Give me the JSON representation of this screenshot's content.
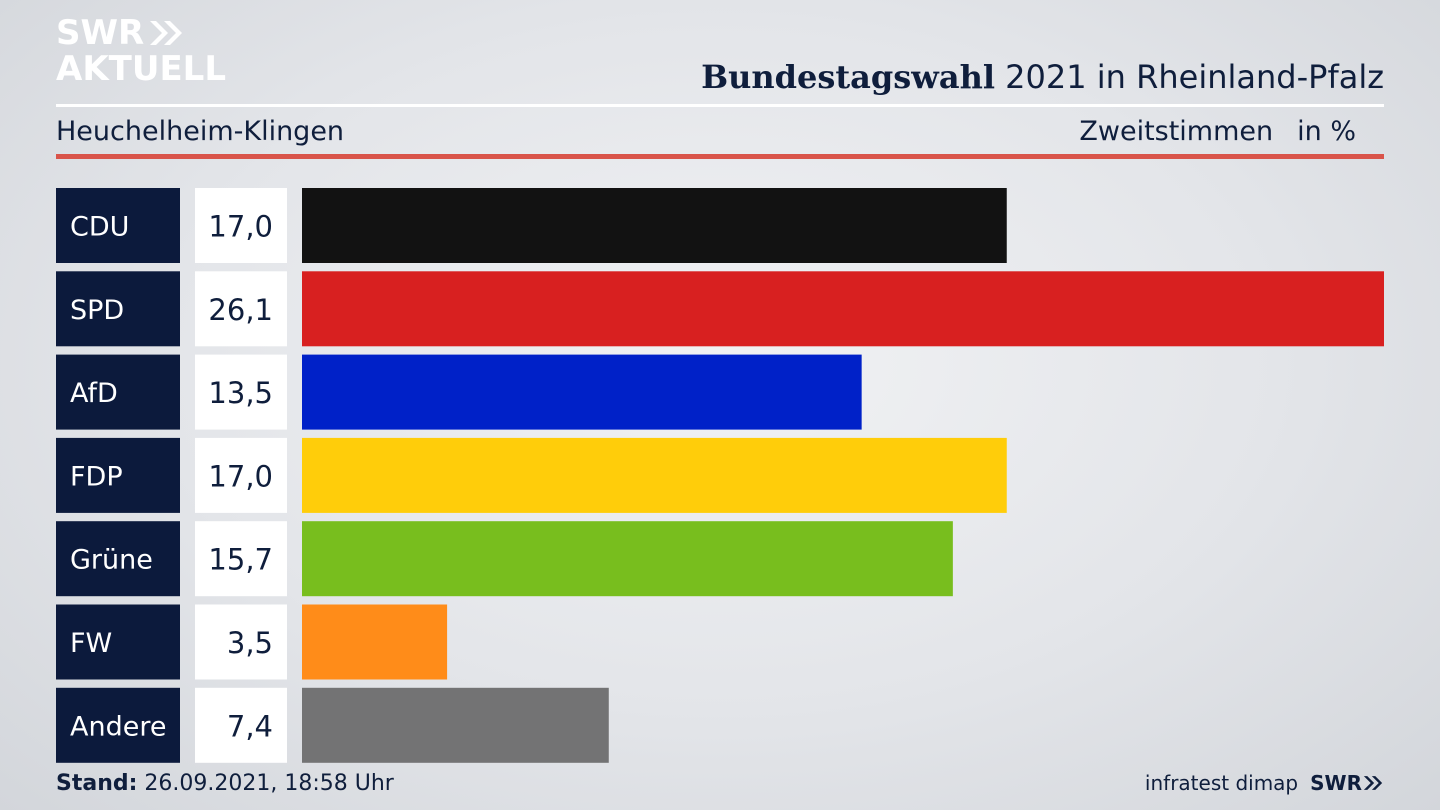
{
  "header": {
    "logo_line1": "SWR",
    "logo_line2": "AKTUELL",
    "title_bold": "Bundestagswahl",
    "title_rest": "2021 in Rheinland-Pfalz",
    "subtitle": "Heuchelheim-Klingen",
    "meta_label": "Zweitstimmen",
    "meta_unit": "in %"
  },
  "chart_data": {
    "type": "bar",
    "orientation": "horizontal",
    "categories": [
      "CDU",
      "SPD",
      "AfD",
      "FDP",
      "Grüne",
      "FW",
      "Andere"
    ],
    "values": [
      17.0,
      26.1,
      13.5,
      17.0,
      15.7,
      3.5,
      7.4
    ],
    "value_labels": [
      "17,0",
      "26,1",
      "13,5",
      "17,0",
      "15,7",
      "3,5",
      "7,4"
    ],
    "colors": [
      "#121212",
      "#d82020",
      "#0021c8",
      "#ffcd0a",
      "#78be1e",
      "#ff8c19",
      "#737374"
    ],
    "label_bg": "#0c1a3c",
    "xlim": [
      0,
      26.1
    ]
  },
  "footer": {
    "stand_label": "Stand:",
    "stand_value": "26.09.2021, 18:58 Uhr",
    "source": "infratest dimap",
    "brand": "SWR"
  }
}
